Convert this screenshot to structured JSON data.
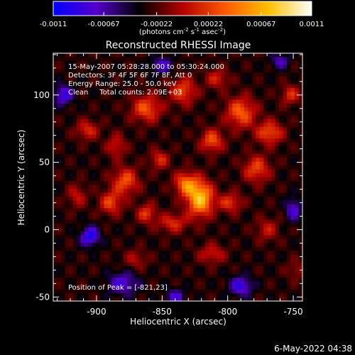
{
  "chart_data": {
    "type": "heatmap",
    "title": "Reconstructed RHESSI Image",
    "xlabel": "Heliocentric X (arcsec)",
    "ylabel": "Heliocentric Y (arcsec)",
    "xlim": [
      -933,
      -743
    ],
    "ylim": [
      -53,
      131
    ],
    "x_ticks": [
      -900,
      -850,
      -800,
      -750
    ],
    "x_tick_labels": [
      "-900",
      "-850",
      "-800",
      "-750"
    ],
    "y_ticks": [
      -50,
      0,
      50,
      100
    ],
    "y_tick_labels": [
      "-50",
      "0",
      "50",
      "100"
    ],
    "colorbar": {
      "range": [
        -0.0011,
        0.0011
      ],
      "ticks": [
        -0.0011,
        -0.00067,
        -0.00022,
        0.00022,
        0.00067,
        0.0011
      ],
      "tick_labels": [
        "-0.0011",
        "-0.00067",
        "-0.00022",
        "0.00022",
        "0.00067",
        "0.0011"
      ],
      "units_prefix": "(photons cm",
      "units_exp1": "-2",
      "units_mid": " s",
      "units_exp2": "-1",
      "units_mid2": " asec",
      "units_exp3": "-2",
      "units_suffix": ")",
      "stops": [
        "#0000ff",
        "#5500cc",
        "#000000",
        "#b20000",
        "#ff5a00",
        "#ffc000",
        "#ffffff"
      ]
    },
    "annotations": {
      "time_range": "15-May-2007 05:28:28.000 to 05:30:24.000",
      "detectors": "Detectors: 3F 4F 5F 6F 7F 8F, Att 0",
      "energy": "Energy Range: 25.0 - 50.0 keV",
      "clean": "Clean     Total counts: 2.09E+03",
      "peak": "Position of Peak = [-821,23]"
    },
    "peak": {
      "x": -821,
      "y": 23
    },
    "sources": [
      {
        "x": -821,
        "y": 23,
        "sx": 7,
        "sy": 9,
        "v": 0.00105
      },
      {
        "x": -832,
        "y": 34,
        "sx": 6,
        "sy": 6,
        "v": 0.0007
      },
      {
        "x": -878,
        "y": 36,
        "sx": 7,
        "sy": 7,
        "v": 0.0006
      },
      {
        "x": -889,
        "y": 20,
        "sx": 6,
        "sy": 6,
        "v": 0.00055
      },
      {
        "x": -862,
        "y": 90,
        "sx": 8,
        "sy": 7,
        "v": 0.0006
      },
      {
        "x": -834,
        "y": 103,
        "sx": 7,
        "sy": 7,
        "v": 0.00055
      },
      {
        "x": -812,
        "y": 66,
        "sx": 6,
        "sy": 6,
        "v": 0.0006
      },
      {
        "x": -790,
        "y": 87,
        "sx": 8,
        "sy": 8,
        "v": 0.00065
      },
      {
        "x": -768,
        "y": 72,
        "sx": 7,
        "sy": 6,
        "v": 0.0006
      },
      {
        "x": -778,
        "y": 45,
        "sx": 7,
        "sy": 7,
        "v": 0.00055
      },
      {
        "x": -798,
        "y": 20,
        "sx": 6,
        "sy": 5,
        "v": 0.0005
      },
      {
        "x": -842,
        "y": 5,
        "sx": 8,
        "sy": 5,
        "v": 0.00045
      },
      {
        "x": -862,
        "y": 12,
        "sx": 5,
        "sy": 5,
        "v": 0.0005
      },
      {
        "x": -907,
        "y": 74,
        "sx": 6,
        "sy": 5,
        "v": 0.00045
      },
      {
        "x": -852,
        "y": 52,
        "sx": 5,
        "sy": 5,
        "v": 0.00045
      },
      {
        "x": -885,
        "y": 62,
        "sx": 5,
        "sy": 6,
        "v": 0.0004
      },
      {
        "x": -808,
        "y": 112,
        "sx": 6,
        "sy": 5,
        "v": 0.0004
      },
      {
        "x": -752,
        "y": 100,
        "sx": 5,
        "sy": 5,
        "v": 0.00045
      },
      {
        "x": -812,
        "y": -18,
        "sx": 7,
        "sy": 5,
        "v": 0.0004
      },
      {
        "x": -770,
        "y": 0,
        "sx": 6,
        "sy": 6,
        "v": 0.00035
      },
      {
        "x": -870,
        "y": -22,
        "sx": 6,
        "sy": 5,
        "v": 0.0003
      },
      {
        "x": -915,
        "y": 25,
        "sx": 5,
        "sy": 6,
        "v": 0.00035
      },
      {
        "x": -748,
        "y": -30,
        "sx": 5,
        "sy": 5,
        "v": 0.00025
      },
      {
        "x": -905,
        "y": -5,
        "sx": 5,
        "sy": 5,
        "v": -0.0007
      },
      {
        "x": -880,
        "y": -40,
        "sx": 8,
        "sy": 6,
        "v": -0.0005
      },
      {
        "x": -790,
        "y": -42,
        "sx": 6,
        "sy": 5,
        "v": -0.0006
      },
      {
        "x": -850,
        "y": 122,
        "sx": 6,
        "sy": 4,
        "v": -0.0005
      },
      {
        "x": -925,
        "y": 100,
        "sx": 5,
        "sy": 5,
        "v": -0.0006
      },
      {
        "x": -760,
        "y": 125,
        "sx": 5,
        "sy": 4,
        "v": -0.0004
      },
      {
        "x": -750,
        "y": 15,
        "sx": 4,
        "sy": 6,
        "v": -0.0005
      },
      {
        "x": -840,
        "y": -50,
        "sx": 5,
        "sy": 4,
        "v": -0.0005
      }
    ]
  },
  "footer": {
    "timestamp": "6-May-2022 04:38"
  }
}
